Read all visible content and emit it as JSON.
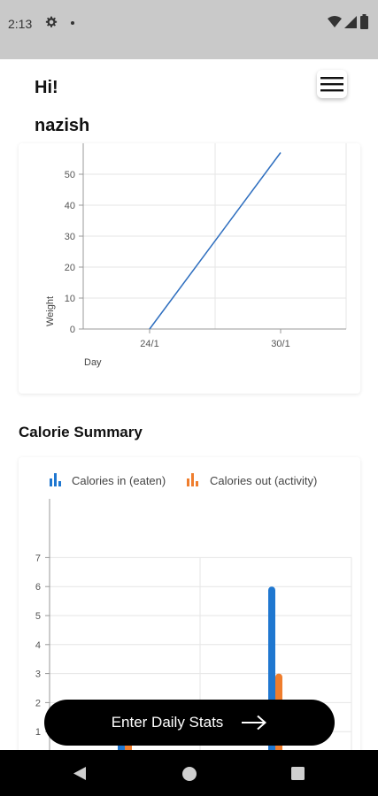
{
  "status_bar": {
    "time": "2:13",
    "icons": [
      "gear-icon",
      "dot-icon",
      "wifi-icon",
      "signal-icon",
      "battery-icon"
    ]
  },
  "header": {
    "greeting": "Hi!",
    "username": "nazish",
    "menu_icon": "hamburger-menu-icon"
  },
  "weight_chart": {
    "chart_data": {
      "type": "line",
      "x": [
        "24/1",
        "30/1"
      ],
      "y": [
        0,
        57
      ],
      "xlabel": "Day",
      "ylabel": "Weight",
      "y_ticks": [
        0,
        10,
        20,
        30,
        40,
        50
      ],
      "ylim": [
        0,
        60
      ],
      "grid": true,
      "line_color": "#2f6fbf"
    }
  },
  "calorie_section": {
    "title": "Calorie Summary",
    "chart_data": {
      "type": "bar",
      "categories": [
        "",
        ""
      ],
      "series": [
        {
          "name": "Calories in (eaten)",
          "values": [
            1,
            6
          ],
          "color": "#1f77d0"
        },
        {
          "name": "Calories out (activity)",
          "values": [
            1,
            3
          ],
          "color": "#ef7d2d"
        }
      ],
      "y_ticks": [
        1,
        2,
        3,
        4,
        5,
        6,
        7
      ],
      "ylim": [
        0,
        7
      ],
      "legend": "top",
      "grid": true
    }
  },
  "cta": {
    "label": "Enter Daily Stats",
    "icon": "arrow-right-icon"
  },
  "nav_bar": {
    "icons": [
      "back-icon",
      "home-icon",
      "recents-icon"
    ]
  }
}
